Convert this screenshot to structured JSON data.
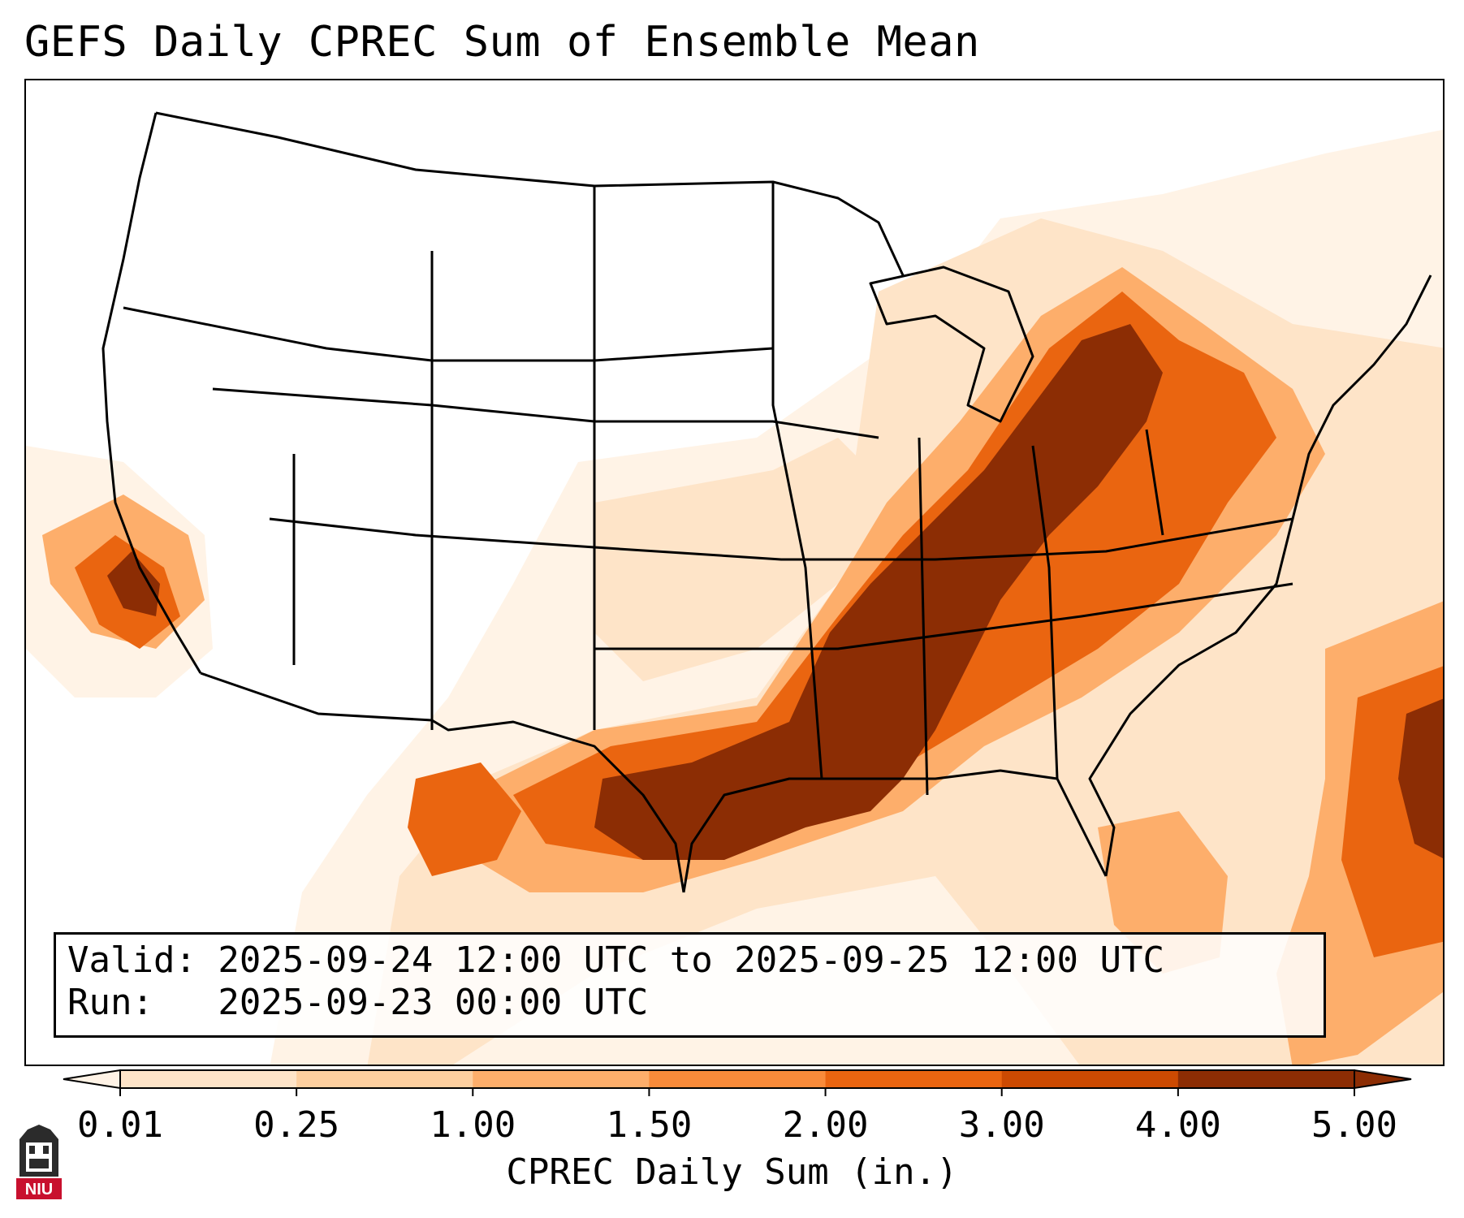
{
  "header": {
    "title": "GEFS Daily CPREC Sum of Ensemble Mean"
  },
  "info": {
    "valid_line": "Valid: 2025-09-24 12:00 UTC to 2025-09-25 12:00 UTC",
    "run_line": "Run:   2025-09-23 00:00 UTC"
  },
  "colorbar": {
    "label": "CPREC Daily Sum (in.)",
    "ticks": [
      "0.01",
      "0.25",
      "1.00",
      "1.50",
      "2.00",
      "3.00",
      "4.00",
      "5.00"
    ],
    "colors": [
      "#fff3e6",
      "#fee4c8",
      "#fdcf9f",
      "#fdae6b",
      "#f98b3a",
      "#ea6510",
      "#cc4a02",
      "#8c2d04"
    ],
    "extend": "both"
  },
  "map": {
    "region": "CONUS",
    "colors": {
      "trace": "#fff3e6",
      "light": "#fee4c8",
      "light_med": "#fdcf9f",
      "medium": "#fdae6b",
      "orange": "#f98b3a",
      "dark_orange": "#ea6510",
      "deep": "#cc4a02",
      "heavy": "#8c2d04"
    }
  },
  "logo": {
    "text": "NIU"
  }
}
